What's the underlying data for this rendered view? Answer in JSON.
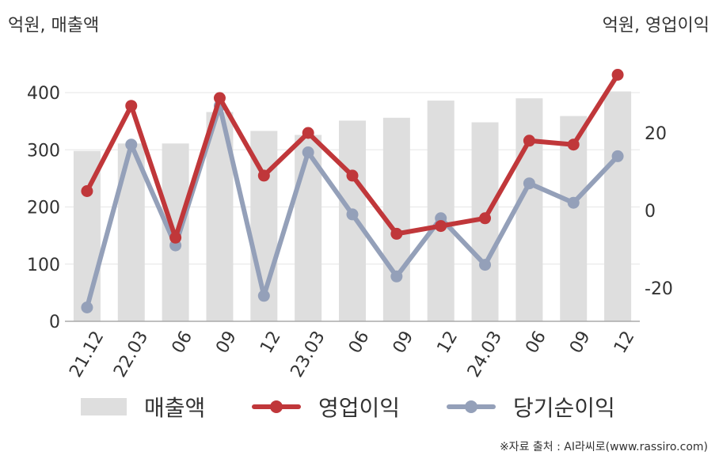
{
  "units": {
    "left": "억원, 매출액",
    "right": "억원, 영업이익"
  },
  "source": "※자료 출처 : AI라씨로(www.rassiro.com)",
  "colors": {
    "bar": "#dedede",
    "operating": "#c0373a",
    "net": "#94a0b9",
    "grid": "#e6e6e6",
    "axis": "#aaaaaa"
  },
  "chart_data": {
    "type": "bar+line",
    "categories": [
      "21.12",
      "22.03",
      "06",
      "09",
      "12",
      "23.03",
      "06",
      "09",
      "12",
      "24.03",
      "06",
      "09",
      "12"
    ],
    "left_axis": {
      "ylim": [
        0,
        450
      ],
      "ticks": [
        0,
        100,
        200,
        300,
        400
      ]
    },
    "right_axis": {
      "ylim": [
        -29,
        35
      ],
      "ticks": [
        -20,
        0,
        20
      ]
    },
    "grid": true,
    "legend_position": "bottom",
    "series": [
      {
        "name": "매출액",
        "kind": "bar",
        "axis": "left",
        "values": [
          298,
          311,
          311,
          366,
          333,
          326,
          351,
          356,
          386,
          348,
          390,
          359,
          402
        ]
      },
      {
        "name": "영업이익",
        "kind": "line",
        "axis": "right",
        "values": [
          5,
          27,
          -7,
          29,
          9,
          20,
          9,
          -6,
          -4,
          -2,
          18,
          17,
          35
        ]
      },
      {
        "name": "당기순이익",
        "kind": "line",
        "axis": "right",
        "values": [
          -25,
          17,
          -9,
          27,
          -22,
          15,
          -1,
          -17,
          -2,
          -14,
          7,
          2,
          14
        ]
      }
    ]
  }
}
